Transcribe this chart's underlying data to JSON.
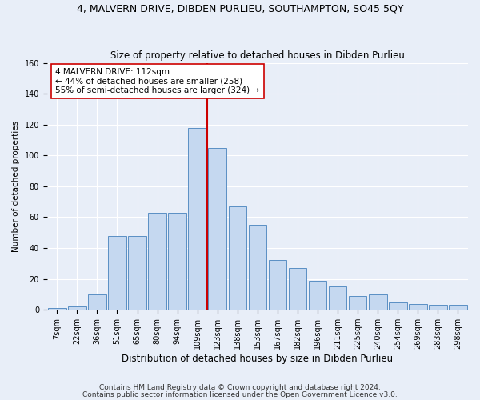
{
  "title": "4, MALVERN DRIVE, DIBDEN PURLIEU, SOUTHAMPTON, SO45 5QY",
  "subtitle": "Size of property relative to detached houses in Dibden Purlieu",
  "xlabel": "Distribution of detached houses by size in Dibden Purlieu",
  "ylabel": "Number of detached properties",
  "bar_labels": [
    "7sqm",
    "22sqm",
    "36sqm",
    "51sqm",
    "65sqm",
    "80sqm",
    "94sqm",
    "109sqm",
    "123sqm",
    "138sqm",
    "153sqm",
    "167sqm",
    "182sqm",
    "196sqm",
    "211sqm",
    "225sqm",
    "240sqm",
    "254sqm",
    "269sqm",
    "283sqm",
    "298sqm"
  ],
  "bar_heights": [
    1,
    2,
    10,
    48,
    48,
    63,
    63,
    118,
    105,
    67,
    55,
    32,
    27,
    19,
    15,
    9,
    10,
    5,
    4,
    3,
    3
  ],
  "bar_color": "#c5d8f0",
  "bar_edge_color": "#5a8fc4",
  "vline_color": "#cc0000",
  "annotation_title": "4 MALVERN DRIVE: 112sqm",
  "annotation_line1": "← 44% of detached houses are smaller (258)",
  "annotation_line2": "55% of semi-detached houses are larger (324) →",
  "annotation_box_color": "#ffffff",
  "annotation_box_edge": "#cc0000",
  "ylim": [
    0,
    160
  ],
  "yticks": [
    0,
    20,
    40,
    60,
    80,
    100,
    120,
    140,
    160
  ],
  "footnote1": "Contains HM Land Registry data © Crown copyright and database right 2024.",
  "footnote2": "Contains public sector information licensed under the Open Government Licence v3.0.",
  "bg_color": "#e8eef8",
  "plot_bg_color": "#e8eef8",
  "grid_color": "#ffffff",
  "title_fontsize": 9,
  "subtitle_fontsize": 8.5,
  "xlabel_fontsize": 8.5,
  "ylabel_fontsize": 7.5,
  "tick_fontsize": 7,
  "annotation_fontsize": 7.5,
  "footnote_fontsize": 6.5
}
